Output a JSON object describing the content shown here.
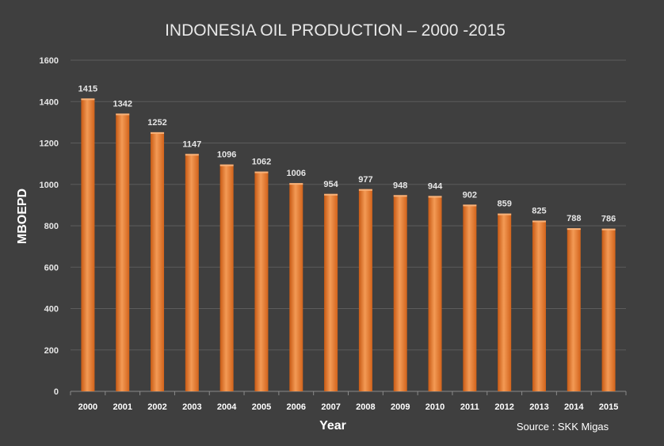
{
  "chart_data": {
    "type": "bar",
    "title": "INDONESIA OIL PRODUCTION – 2000 -2015",
    "xlabel": "Year",
    "ylabel": "MBOEPD",
    "source": "Source : SKK Migas",
    "categories": [
      "2000",
      "2001",
      "2002",
      "2003",
      "2004",
      "2005",
      "2006",
      "2007",
      "2008",
      "2009",
      "2010",
      "2011",
      "2012",
      "2013",
      "2014",
      "2015"
    ],
    "values": [
      1415,
      1342,
      1252,
      1147,
      1096,
      1062,
      1006,
      954,
      977,
      948,
      944,
      902,
      859,
      825,
      788,
      786
    ],
    "ylim": [
      0,
      1600
    ],
    "yticks": [
      0,
      200,
      400,
      600,
      800,
      1000,
      1200,
      1400,
      1600
    ],
    "grid": true,
    "legend": "none",
    "colors": {
      "bar": "#e8752a",
      "bar_light": "#f39a55",
      "bar_dark": "#c85a14",
      "background": "#3f3f3f"
    }
  }
}
